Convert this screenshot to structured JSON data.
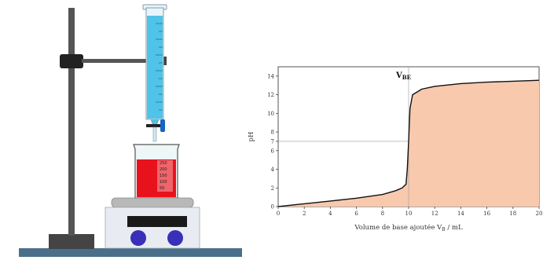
{
  "apparatus": {
    "beaker_marks": [
      "250",
      "200",
      "150",
      "100",
      "50"
    ],
    "colors": {
      "burette_liquid": "#4fc3e8",
      "beaker_liquid": "#e8121c",
      "stirrer_knob": "#3a2fb8",
      "stopcock": "#1565c0",
      "bench": "#4a6f8a",
      "stand": "#444444"
    }
  },
  "chart_data": {
    "type": "area",
    "title": "",
    "xlabel": "Volume de base ajoutée V",
    "xlabel_subscript": "B",
    "xlabel_unit": " / mL",
    "ylabel": "pH",
    "xlim": [
      0,
      20
    ],
    "ylim": [
      0,
      15
    ],
    "xticks": [
      0,
      2,
      4,
      6,
      8,
      10,
      12,
      14,
      16,
      18,
      20
    ],
    "yticks": [
      0,
      2,
      4,
      6,
      7,
      8,
      10,
      12,
      14
    ],
    "equivalence": {
      "label": "V",
      "label_subscript": "BE",
      "x": 10,
      "y": 7
    },
    "x": [
      0,
      2,
      4,
      6,
      8,
      9,
      9.5,
      9.8,
      9.9,
      10,
      10.1,
      10.3,
      11,
      12,
      14,
      16,
      18,
      20
    ],
    "y": [
      0,
      0.3,
      0.6,
      0.9,
      1.3,
      1.7,
      2.0,
      2.4,
      4.0,
      7.0,
      10.5,
      12.0,
      12.6,
      12.9,
      13.2,
      13.35,
      13.45,
      13.55
    ],
    "colors": {
      "fill": "#f8c9ad",
      "line": "#111111",
      "guide": "#999999"
    }
  }
}
